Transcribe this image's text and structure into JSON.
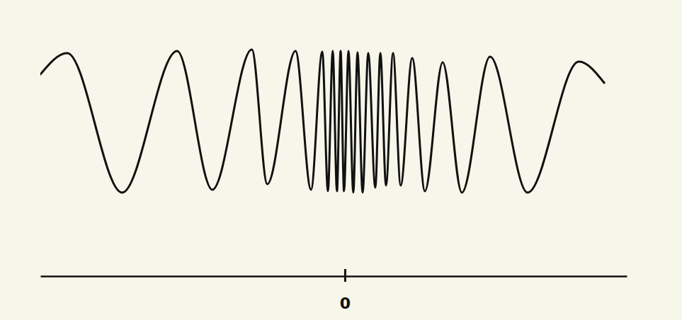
{
  "chart_data": {
    "type": "line",
    "x": [
      -1.08,
      -0.985,
      -0.79,
      -0.595,
      -0.47,
      -0.33,
      -0.275,
      -0.175,
      -0.12,
      -0.08,
      -0.06,
      -0.043,
      -0.028,
      -0.015,
      -0.003,
      0.013,
      0.03,
      0.045,
      0.063,
      0.083,
      0.108,
      0.126,
      0.146,
      0.171,
      0.198,
      0.239,
      0.284,
      0.347,
      0.415,
      0.515,
      0.648,
      0.83,
      0.92
    ],
    "series": [
      {
        "color": "#111111",
        "values": [
          0.65,
          0.95,
          -1.02,
          0.98,
          -0.98,
          1.0,
          -0.9,
          0.98,
          -0.98,
          0.97,
          -1.0,
          0.98,
          -1.0,
          0.98,
          -1.0,
          0.98,
          -1.02,
          0.96,
          -1.02,
          0.95,
          -0.95,
          0.95,
          -0.92,
          0.95,
          -0.92,
          0.88,
          -1.0,
          0.82,
          -1.02,
          0.9,
          -1.02,
          0.83,
          0.53
        ]
      }
    ],
    "xlim": [
      -1.08,
      1
    ],
    "ylim": [
      -2.2,
      1.5
    ],
    "xticks": [
      0
    ],
    "tick_labels": "x"
  }
}
